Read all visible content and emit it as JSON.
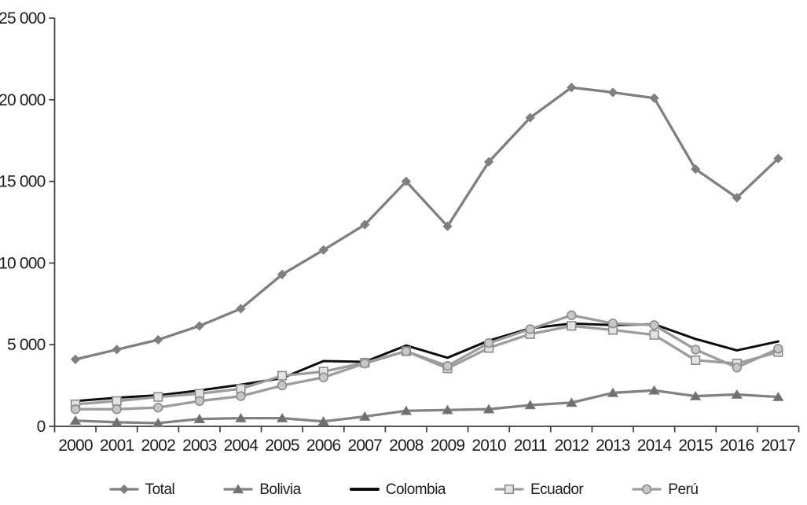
{
  "chart_data": {
    "type": "line",
    "title": "",
    "xlabel": "",
    "ylabel": "",
    "x": [
      "2000",
      "2001",
      "2002",
      "2003",
      "2004",
      "2005",
      "2006",
      "2007",
      "2008",
      "2009",
      "2010",
      "2011",
      "2012",
      "2013",
      "2014",
      "2015",
      "2016",
      "2017"
    ],
    "ylim": [
      0,
      25000
    ],
    "yticks": [
      {
        "value": 0,
        "label": "0"
      },
      {
        "value": 5000,
        "label": "5 000"
      },
      {
        "value": 10000,
        "label": "10 000"
      },
      {
        "value": 15000,
        "label": "15 000"
      },
      {
        "value": 20000,
        "label": "20 000"
      },
      {
        "value": 25000,
        "label": "25 000"
      }
    ],
    "grid": false,
    "legend_position": "bottom",
    "series": [
      {
        "name": "Total",
        "marker": "diamond",
        "color": "#7f7f7f",
        "marker_fill": "#7f7f7f",
        "marker_stroke": "#7f7f7f",
        "values": [
          4100,
          4700,
          5300,
          6150,
          7200,
          9300,
          10800,
          12350,
          15000,
          12250,
          16200,
          18900,
          20750,
          20450,
          20100,
          15750,
          14000,
          16400
        ]
      },
      {
        "name": "Bolivia",
        "marker": "triangle",
        "color": "#828282",
        "marker_fill": "#6e6e6e",
        "marker_stroke": "#828282",
        "values": [
          350,
          250,
          200,
          450,
          500,
          500,
          300,
          600,
          950,
          1000,
          1050,
          1300,
          1450,
          2050,
          2200,
          1850,
          1950,
          1800
        ]
      },
      {
        "name": "Colombia",
        "marker": "none",
        "color": "#0d0d0d",
        "marker_fill": "#0d0d0d",
        "marker_stroke": "#0d0d0d",
        "values": [
          1550,
          1750,
          1900,
          2200,
          2550,
          2950,
          4000,
          3950,
          4950,
          4200,
          5250,
          6000,
          6300,
          6200,
          6250,
          5350,
          4650,
          5200
        ]
      },
      {
        "name": "Ecuador",
        "marker": "square",
        "color": "#9c9c9c",
        "marker_fill": "#e3e3e3",
        "marker_stroke": "#8c8c8c",
        "values": [
          1350,
          1550,
          1800,
          2000,
          2300,
          3100,
          3350,
          3900,
          4600,
          3550,
          4800,
          5650,
          6150,
          5900,
          5600,
          4050,
          3850,
          4550
        ]
      },
      {
        "name": "Perú",
        "marker": "circle",
        "color": "#9c9c9c",
        "marker_fill": "#c7c7c7",
        "marker_stroke": "#8c8c8c",
        "values": [
          1050,
          1050,
          1150,
          1550,
          1850,
          2500,
          3000,
          3850,
          4600,
          3700,
          5100,
          5950,
          6800,
          6300,
          6200,
          4700,
          3600,
          4750
        ]
      }
    ],
    "colors": {
      "axis": "#3d3d3d",
      "text": "#1d1d1d",
      "background": "#ffffff"
    }
  }
}
